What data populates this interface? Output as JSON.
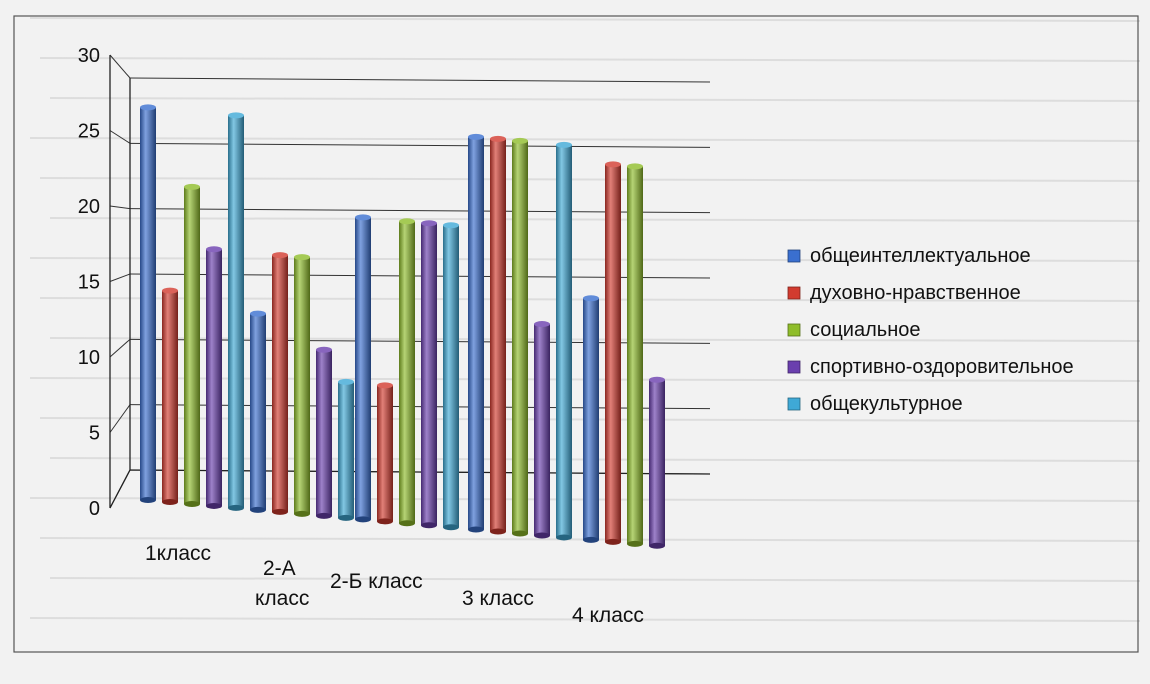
{
  "chart_data": {
    "type": "bar",
    "title": "",
    "xlabel": "",
    "ylabel": "",
    "ylim": [
      0,
      30
    ],
    "yticks": [
      0,
      5,
      10,
      15,
      20,
      25,
      30
    ],
    "categories": [
      "1класс",
      "2-А класс",
      "2-Б класс",
      "3 класс",
      "4 класс"
    ],
    "series": [
      {
        "name": "общеинтеллектуальное",
        "color": "#3a6fcf",
        "values": [
          26,
          13,
          20,
          26,
          16
        ]
      },
      {
        "name": "духовно-нравственное",
        "color": "#d23b2f",
        "values": [
          14,
          17,
          9,
          26,
          25
        ]
      },
      {
        "name": "социальное",
        "color": "#8fbd2a",
        "values": [
          21,
          17,
          20,
          26,
          25
        ]
      },
      {
        "name": "спортивно-оздоровительное",
        "color": "#6a3fae",
        "values": [
          17,
          11,
          20,
          14,
          11
        ]
      },
      {
        "name": "общекультурное",
        "color": "#3fa9d6",
        "values": [
          26,
          9,
          20,
          26,
          0
        ]
      }
    ],
    "legend_position": "right",
    "grid": true
  }
}
